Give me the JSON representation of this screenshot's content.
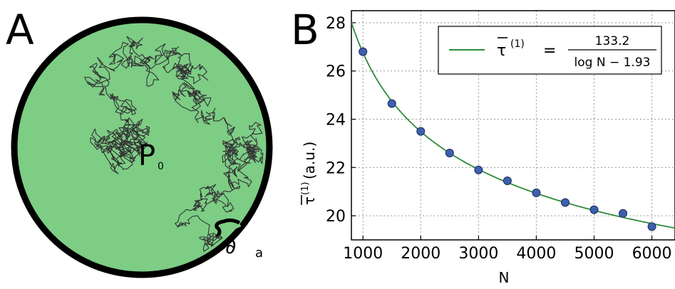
{
  "panel_a": {
    "letter": "A",
    "point_label": "P",
    "point_subscript": "0",
    "boundary_label": "∂",
    "boundary_subscript": "a",
    "disk_color": "#7dcd85",
    "edge_color": "#000000",
    "path_color": "#333333"
  },
  "panel_b": {
    "letter": "B",
    "legend": {
      "lhs": "τ",
      "lhs_sup": "(1)",
      "equals": "=",
      "numerator": "133.2",
      "denominator": "log N − 1.93"
    },
    "ylabel_symbol": "τ",
    "ylabel_sup": "(1)",
    "ylabel_unit": "(a.u.)",
    "xlabel": "N"
  },
  "chart_data": {
    "type": "scatter",
    "xlabel": "N",
    "ylabel": "τ(1) (a.u.)",
    "xlim": [
      800,
      6400
    ],
    "ylim": [
      19.0,
      28.5
    ],
    "xticks": [
      1000,
      2000,
      3000,
      4000,
      5000,
      6000
    ],
    "yticks": [
      20,
      22,
      24,
      26,
      28
    ],
    "grid": true,
    "legend_position": "top-right",
    "series": [
      {
        "kind": "points",
        "color": "#3e5fb0",
        "x": [
          1000,
          1500,
          2000,
          2500,
          3000,
          3500,
          4000,
          4500,
          5000,
          5500,
          6000
        ],
        "y": [
          26.8,
          24.65,
          23.5,
          22.6,
          21.9,
          21.45,
          20.95,
          20.55,
          20.25,
          20.1,
          19.55
        ]
      },
      {
        "kind": "fit",
        "color": "#2e8b3a",
        "formula": {
          "numerator": 133.2,
          "offset": 1.93
        }
      }
    ]
  }
}
